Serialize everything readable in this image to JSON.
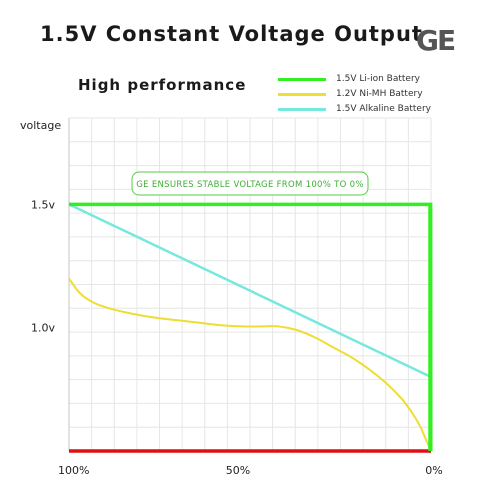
{
  "header": {
    "title": "1.5V Constant Voltage Output",
    "logo": "GE",
    "subtitle": "High performance"
  },
  "colors": {
    "liion": "#33ee22",
    "nimh": "#eedd33",
    "alkaline": "#77e8dd",
    "baseline": "#dd1111",
    "grid": "#e6e6e6",
    "annotation_border": "#55cc44"
  },
  "chart_data": {
    "type": "line",
    "title": "High performance",
    "ylabel": "voltage",
    "xlabel": "",
    "x_ticks": [
      {
        "value": 100,
        "label": "100%"
      },
      {
        "value": 50,
        "label": "50%"
      },
      {
        "value": 0,
        "label": "0%"
      }
    ],
    "y_ticks": [
      {
        "value": 1.5,
        "label": "1.5v"
      },
      {
        "value": 1.0,
        "label": "1.0v"
      }
    ],
    "xlim": [
      100,
      0
    ],
    "ylim": [
      0.5,
      1.85
    ],
    "grid": true,
    "legend_position": "top-right",
    "annotation": "GE ENSURES STABLE VOLTAGE FROM 100% TO 0%",
    "series": [
      {
        "name": "1.5V Li-ion Battery",
        "color": "#33ee22",
        "x": [
          100,
          0.1,
          0.05,
          0
        ],
        "y": [
          1.5,
          1.5,
          0.5,
          0.5
        ]
      },
      {
        "name": "1.2V Ni-MH Battery",
        "color": "#eedd33",
        "x": [
          100,
          97,
          93,
          88,
          82,
          76,
          70,
          64,
          58,
          52,
          47,
          42,
          37,
          32,
          27,
          22,
          17,
          12,
          8,
          5,
          3,
          1.5,
          0
        ],
        "y": [
          1.2,
          1.14,
          1.1,
          1.075,
          1.055,
          1.04,
          1.03,
          1.02,
          1.01,
          1.005,
          1.005,
          1.005,
          0.99,
          0.96,
          0.92,
          0.88,
          0.83,
          0.77,
          0.71,
          0.65,
          0.6,
          0.55,
          0.5
        ]
      },
      {
        "name": "1.5V Alkaline Battery",
        "color": "#77e8dd",
        "x": [
          100,
          0
        ],
        "y": [
          1.5,
          0.8
        ]
      }
    ],
    "baseline": {
      "y": 0.5
    }
  }
}
